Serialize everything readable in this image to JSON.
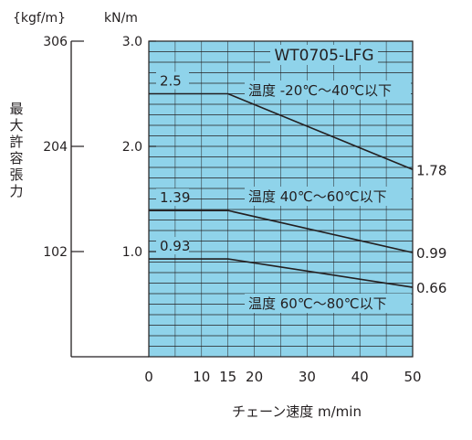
{
  "chart_data": {
    "type": "line",
    "title": "WT0705-LFG",
    "xlabel": "チェーン速度 m/min",
    "ylabel": "最大許容張力",
    "unit_kgf": "{kgf/m}",
    "unit_kn": "kN/m",
    "xlim": [
      0,
      50
    ],
    "ylim": [
      0,
      3.0
    ],
    "x_ticks": [
      0,
      10,
      15,
      20,
      30,
      40,
      50
    ],
    "y_ticks": [
      1.0,
      2.0,
      3.0
    ],
    "y_tick_labels": [
      "1.0",
      "2.0",
      "3.0"
    ],
    "kgf_ticks": [
      102,
      204,
      306
    ],
    "grid": true,
    "background_color": "#8fd3ea",
    "line_color": "#231f20",
    "series": [
      {
        "name": "温度 -20℃～40℃以下",
        "x": [
          0,
          15,
          50
        ],
        "y": [
          2.5,
          2.5,
          1.78
        ],
        "start_label": "2.5",
        "end_label": "1.78"
      },
      {
        "name": "温度 40℃～60℃以下",
        "x": [
          0,
          15,
          50
        ],
        "y": [
          1.39,
          1.39,
          0.99
        ],
        "start_label": "1.39",
        "end_label": "0.99"
      },
      {
        "name": "温度 60℃～80℃以下",
        "x": [
          0,
          15,
          50
        ],
        "y": [
          0.93,
          0.93,
          0.66
        ],
        "start_label": "0.93",
        "end_label": "0.66"
      }
    ]
  }
}
